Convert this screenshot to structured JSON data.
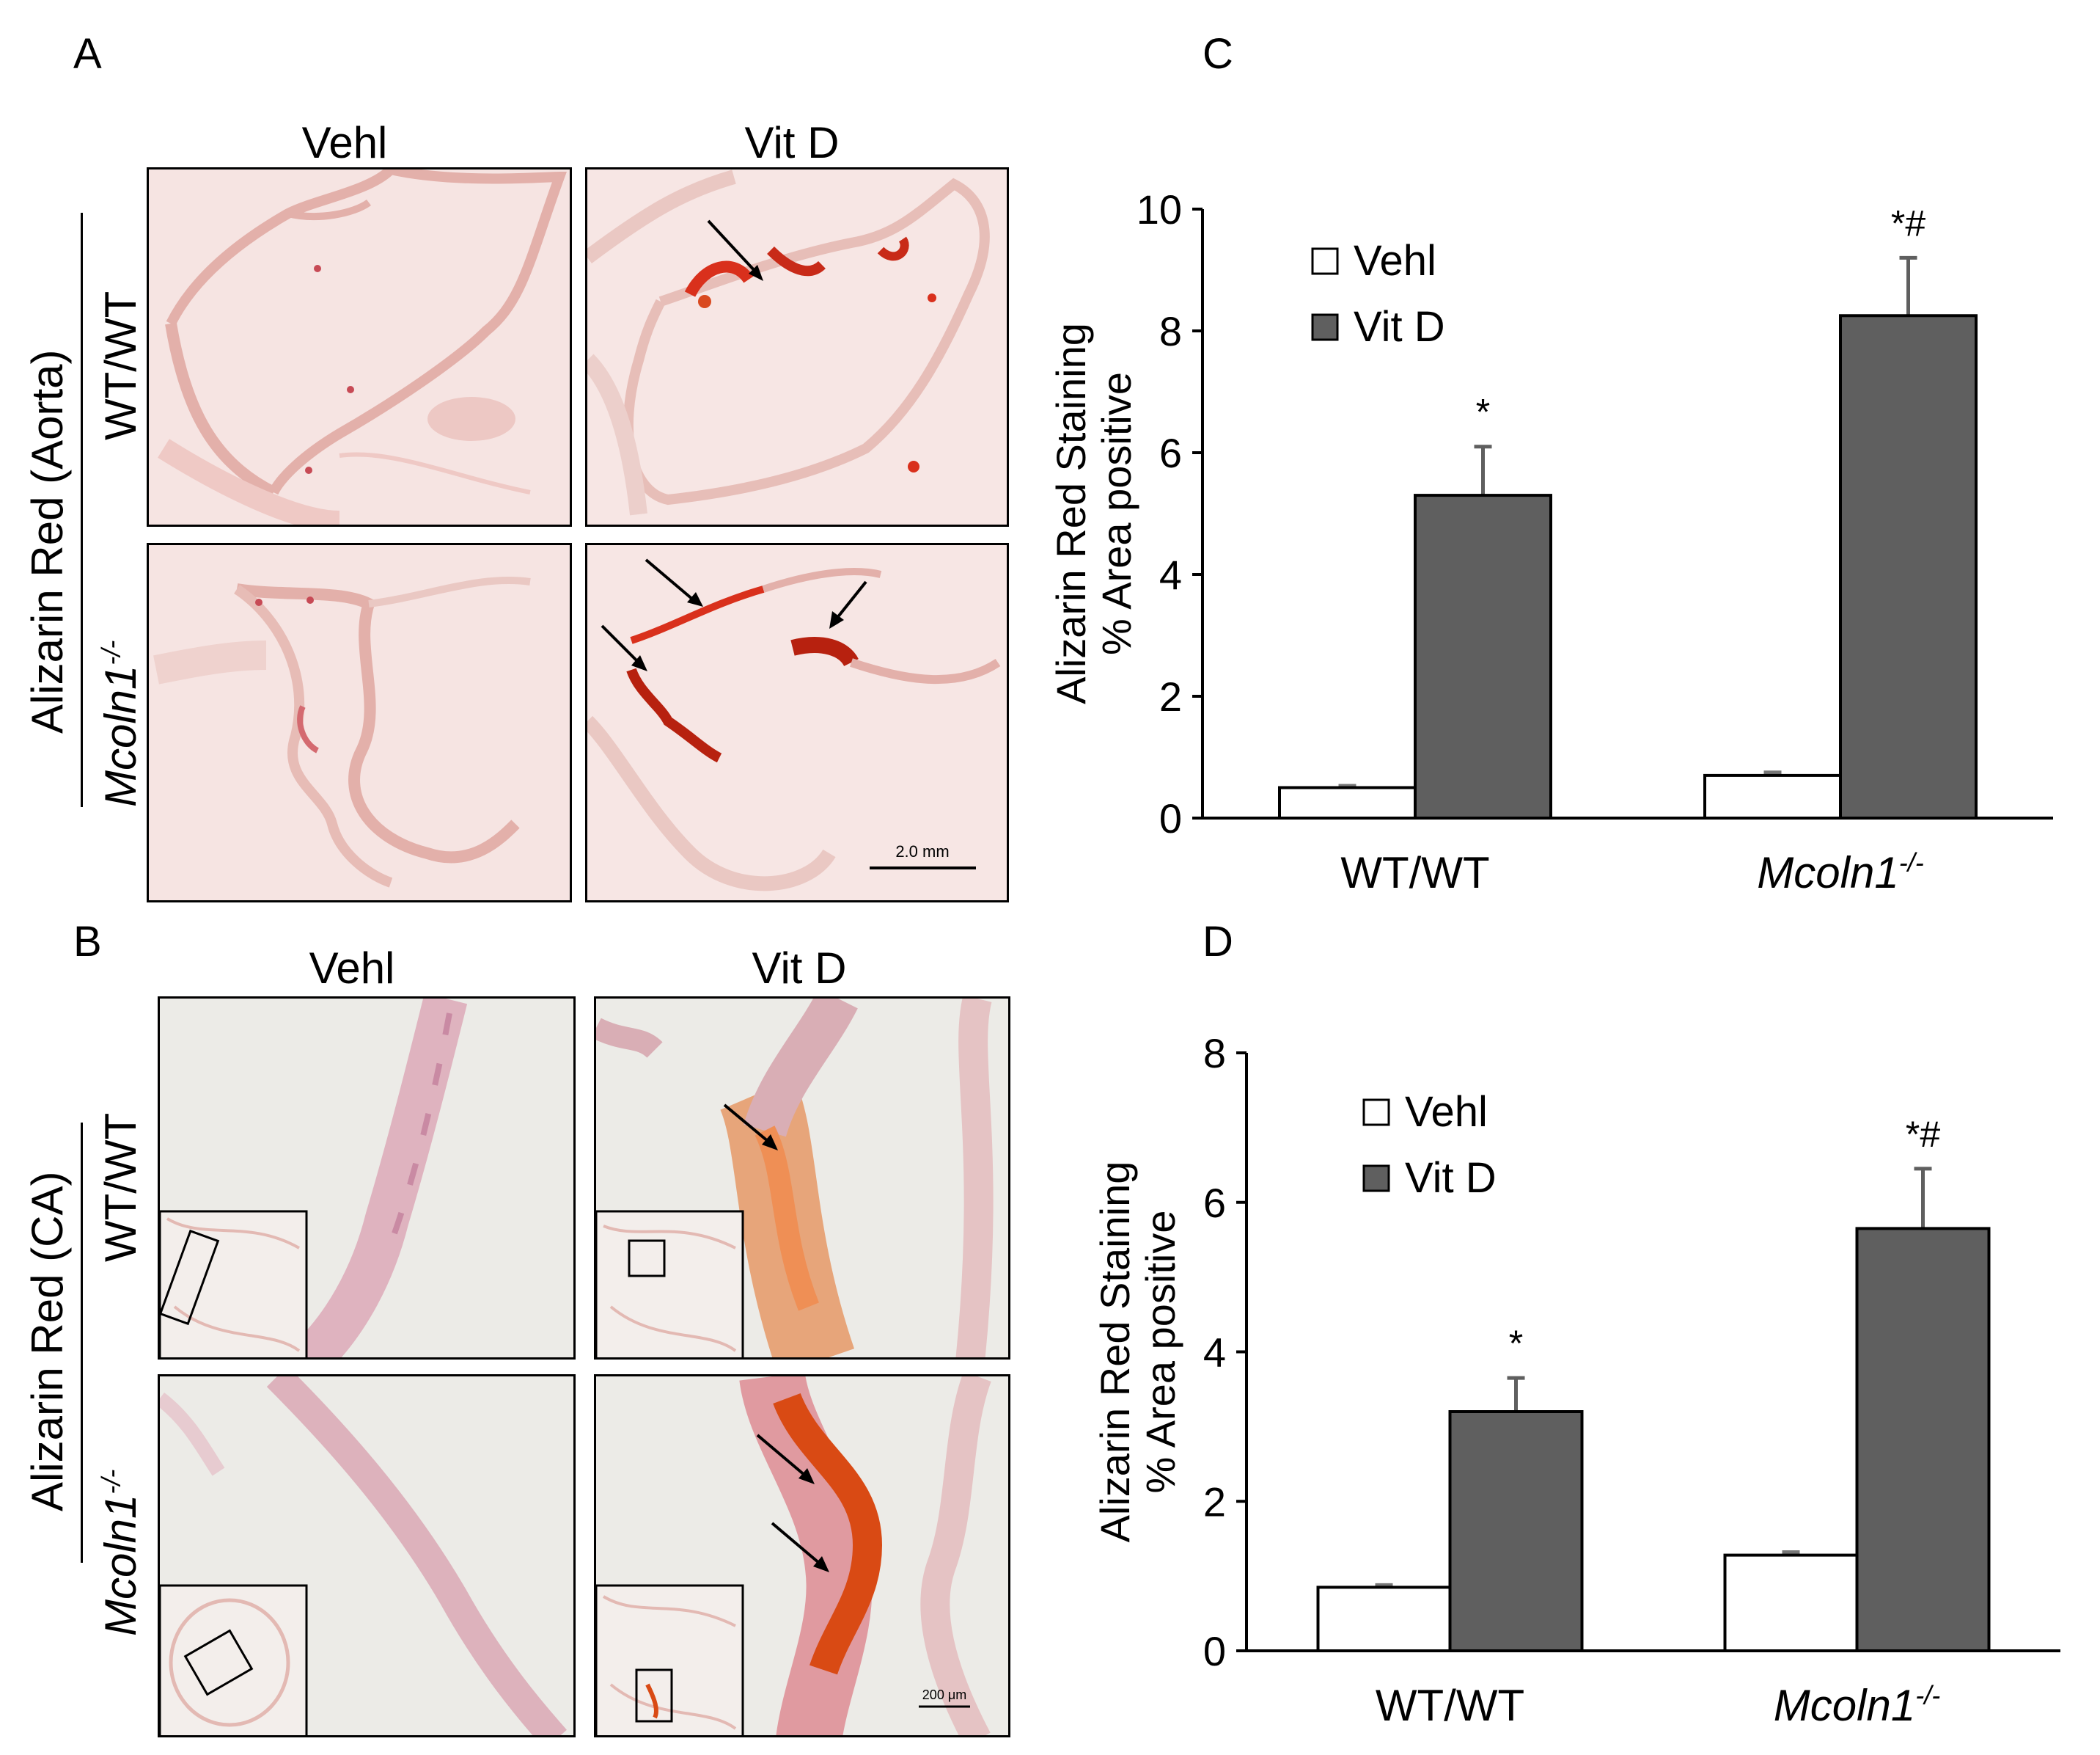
{
  "panels": {
    "a": {
      "letter": "A",
      "col_titles": [
        "Vehl",
        "Vit D"
      ],
      "stain_label": "Alizarin Red (Aorta)",
      "row_labels": [
        "WT/WT",
        "Mcoln1",
        "-/-"
      ],
      "scale_bar": "2.0 mm"
    },
    "b": {
      "letter": "B",
      "col_titles": [
        "Vehl",
        "Vit D"
      ],
      "stain_label": "Alizarin Red (CA)",
      "row_labels": [
        "WT/WT",
        "Mcoln1",
        "-/-"
      ],
      "scale_bar": "200 μm"
    },
    "c": {
      "letter": "C"
    },
    "d": {
      "letter": "D"
    }
  },
  "chart_data": [
    {
      "type": "bar",
      "categories": [
        "WT/WT",
        "Mcoln1-/-"
      ],
      "category_display": [
        {
          "text": "WT/WT",
          "sup": "",
          "italic": false
        },
        {
          "text": "Mcoln1",
          "sup": "-/-",
          "italic": true
        }
      ],
      "series": [
        {
          "name": "Vehl",
          "values": [
            0.5,
            0.7
          ],
          "errors": [
            0.03,
            0.05
          ],
          "color": "#ffffff"
        },
        {
          "name": "Vit D",
          "values": [
            5.3,
            8.25
          ],
          "errors": [
            0.8,
            0.95
          ],
          "color": "#5f5f5f"
        }
      ],
      "annotations": [
        "*",
        "*#"
      ],
      "ylabel_lines": [
        "Alizarin Red Staining",
        "% Area positive"
      ],
      "ylim": [
        0,
        10
      ],
      "yticks": [
        0,
        2,
        4,
        6,
        8,
        10
      ],
      "legend": "top-left",
      "grid": false
    },
    {
      "type": "bar",
      "categories": [
        "WT/WT",
        "Mcoln1-/-"
      ],
      "category_display": [
        {
          "text": "WT/WT",
          "sup": "",
          "italic": false
        },
        {
          "text": "Mcoln1",
          "sup": "-/-",
          "italic": true
        }
      ],
      "series": [
        {
          "name": "Vehl",
          "values": [
            0.85,
            1.28
          ],
          "errors": [
            0.03,
            0.04
          ],
          "color": "#ffffff"
        },
        {
          "name": "Vit D",
          "values": [
            3.2,
            5.65
          ],
          "errors": [
            0.45,
            0.8
          ],
          "color": "#5f5f5f"
        }
      ],
      "annotations": [
        "*",
        "*#"
      ],
      "ylabel_lines": [
        "Alizarin Red Staining",
        "% Area positive"
      ],
      "ylim": [
        0,
        8
      ],
      "yticks": [
        0,
        2,
        4,
        6,
        8
      ],
      "legend": "top-left",
      "grid": false
    }
  ]
}
